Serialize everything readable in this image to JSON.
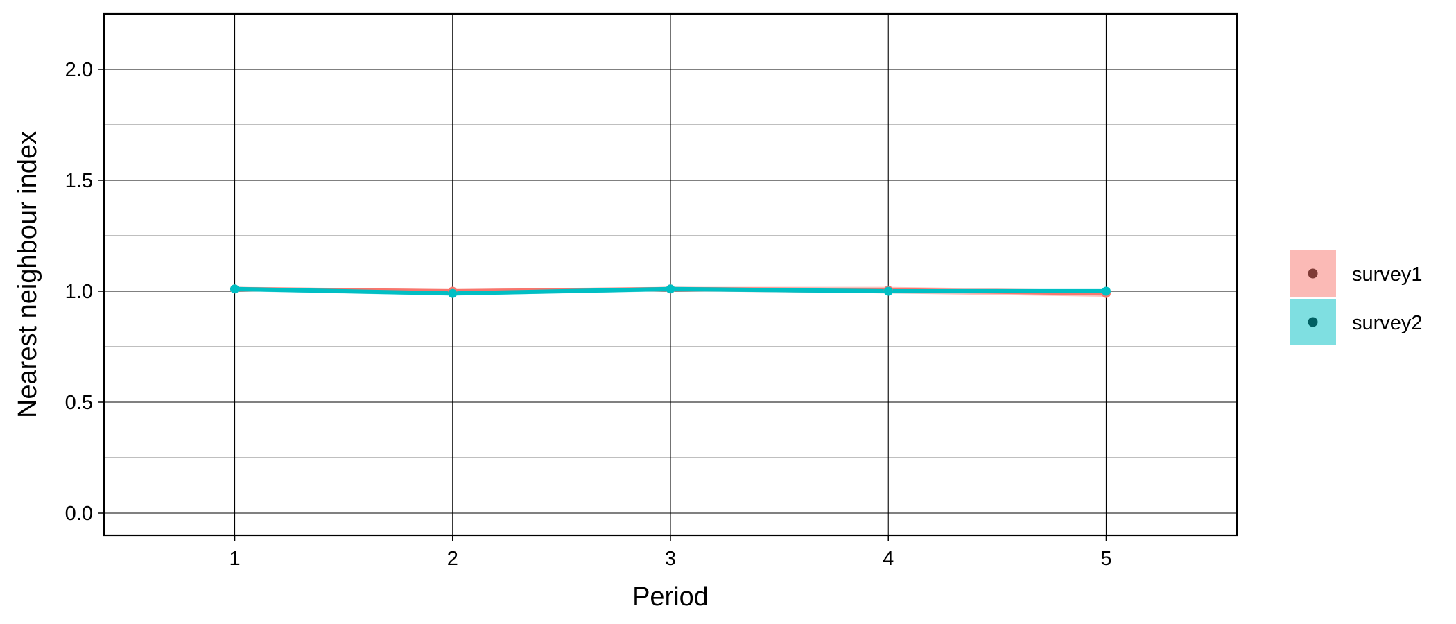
{
  "chart_data": {
    "type": "line",
    "xlabel": "Period",
    "ylabel": "Nearest neighbour index",
    "x": [
      1,
      2,
      3,
      4,
      5
    ],
    "xlim": [
      0.4,
      5.6
    ],
    "ylim": [
      -0.1,
      2.25
    ],
    "x_ticks": [
      "1",
      "2",
      "3",
      "4",
      "5"
    ],
    "y_ticks": [
      "0.0",
      "0.5",
      "1.0",
      "1.5",
      "2.0"
    ],
    "grid": true,
    "legend_position": "right",
    "series": [
      {
        "name": "survey1",
        "values": [
          1.01,
          1.0,
          1.01,
          1.005,
          0.99
        ],
        "ci_lower": [
          1.0,
          0.99,
          1.0,
          0.99,
          0.975
        ],
        "ci_upper": [
          1.02,
          1.01,
          1.02,
          1.02,
          1.005
        ],
        "line_color": "#F8766D",
        "ribbon_color": "#F8766D",
        "point_color": "#7F3B36"
      },
      {
        "name": "survey2",
        "values": [
          1.01,
          0.99,
          1.01,
          1.0,
          1.0
        ],
        "ci_lower": [
          1.0,
          0.98,
          1.0,
          0.99,
          0.99
        ],
        "ci_upper": [
          1.02,
          1.0,
          1.02,
          1.01,
          1.01
        ],
        "line_color": "#00BFC4",
        "ribbon_color": "#00BFC4",
        "point_color": "#005F62"
      }
    ]
  }
}
